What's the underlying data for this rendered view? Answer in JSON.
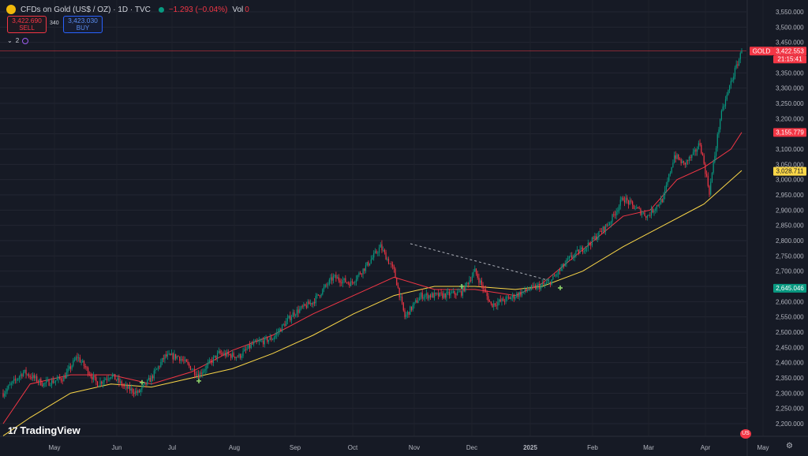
{
  "legend": {
    "symbol_title": "CFDs on Gold (US$ / OZ) · 1D · TVC",
    "change": "−1.293 (−0.04%)",
    "volume_label": "Vol",
    "volume_value": "0",
    "market_status_color": "#089981"
  },
  "trade": {
    "sell_price": "3,422.690",
    "sell_label": "SELL",
    "spread": "340",
    "buy_price": "3,423.030",
    "buy_label": "BUY"
  },
  "indicators": {
    "count": "2"
  },
  "branding": {
    "logo_text": "TradingView"
  },
  "price_axis_labels": {
    "gold_label": "GOLD",
    "gold_price": "3,422.553",
    "countdown": "21:15:41",
    "ma_fast": "3,155.779",
    "ma_slow": "3,028.711",
    "ma_touch": "2,645.046"
  },
  "chart_data": {
    "type": "candlestick",
    "symbol": "GOLD",
    "timeframe": "1D",
    "ylim": [
      2180,
      3560
    ],
    "y_ticks": [
      2200,
      2250,
      2300,
      2350,
      2400,
      2450,
      2500,
      2550,
      2600,
      2650,
      2700,
      2750,
      2800,
      2850,
      2900,
      2950,
      3000,
      3050,
      3100,
      3150,
      3200,
      3250,
      3300,
      3350,
      3400,
      3450,
      3500,
      3550
    ],
    "x_labels": [
      "May",
      "Jun",
      "Jul",
      "Aug",
      "Sep",
      "Oct",
      "Nov",
      "Dec",
      "2025",
      "Feb",
      "Mar",
      "Apr",
      "May"
    ],
    "last_price": 3422.553,
    "series": [
      {
        "name": "MA fast",
        "color": "#f23645",
        "last": 3155.779
      },
      {
        "name": "MA slow",
        "color": "#fbd748",
        "last": 3028.711
      }
    ],
    "trend_line": {
      "from": [
        "Oct 30",
        2790
      ],
      "to": [
        "Jan 14",
        2670
      ]
    },
    "anchors": [
      [
        0,
        2300
      ],
      [
        15,
        2370
      ],
      [
        30,
        2330
      ],
      [
        45,
        2350
      ],
      [
        55,
        2420
      ],
      [
        70,
        2330
      ],
      [
        80,
        2360
      ],
      [
        90,
        2320
      ],
      [
        100,
        2300
      ],
      [
        110,
        2350
      ],
      [
        120,
        2420
      ],
      [
        130,
        2420
      ],
      [
        145,
        2360
      ],
      [
        160,
        2430
      ],
      [
        175,
        2420
      ],
      [
        185,
        2460
      ],
      [
        200,
        2480
      ],
      [
        215,
        2560
      ],
      [
        230,
        2600
      ],
      [
        245,
        2680
      ],
      [
        258,
        2660
      ],
      [
        270,
        2720
      ],
      [
        280,
        2780
      ],
      [
        290,
        2700
      ],
      [
        298,
        2550
      ],
      [
        310,
        2620
      ],
      [
        325,
        2620
      ],
      [
        340,
        2630
      ],
      [
        350,
        2700
      ],
      [
        362,
        2590
      ],
      [
        375,
        2610
      ],
      [
        390,
        2640
      ],
      [
        405,
        2660
      ],
      [
        420,
        2740
      ],
      [
        435,
        2790
      ],
      [
        450,
        2860
      ],
      [
        460,
        2940
      ],
      [
        468,
        2910
      ],
      [
        478,
        2880
      ],
      [
        490,
        2940
      ],
      [
        498,
        3080
      ],
      [
        505,
        3050
      ],
      [
        512,
        3080
      ],
      [
        517,
        3120
      ],
      [
        524,
        2960
      ],
      [
        532,
        3200
      ],
      [
        540,
        3320
      ],
      [
        548,
        3420
      ]
    ],
    "ma_fast_path": [
      [
        0,
        2200
      ],
      [
        20,
        2330
      ],
      [
        50,
        2360
      ],
      [
        80,
        2360
      ],
      [
        110,
        2330
      ],
      [
        140,
        2370
      ],
      [
        170,
        2440
      ],
      [
        200,
        2490
      ],
      [
        230,
        2560
      ],
      [
        260,
        2620
      ],
      [
        290,
        2680
      ],
      [
        320,
        2640
      ],
      [
        350,
        2640
      ],
      [
        380,
        2620
      ],
      [
        400,
        2660
      ],
      [
        430,
        2770
      ],
      [
        460,
        2880
      ],
      [
        480,
        2900
      ],
      [
        500,
        3000
      ],
      [
        520,
        3040
      ],
      [
        540,
        3100
      ],
      [
        548,
        3155
      ]
    ],
    "ma_slow_path": [
      [
        0,
        2160
      ],
      [
        20,
        2220
      ],
      [
        50,
        2300
      ],
      [
        80,
        2330
      ],
      [
        110,
        2320
      ],
      [
        140,
        2350
      ],
      [
        170,
        2380
      ],
      [
        200,
        2430
      ],
      [
        230,
        2490
      ],
      [
        260,
        2560
      ],
      [
        290,
        2620
      ],
      [
        320,
        2650
      ],
      [
        350,
        2650
      ],
      [
        380,
        2640
      ],
      [
        400,
        2650
      ],
      [
        430,
        2700
      ],
      [
        460,
        2780
      ],
      [
        490,
        2850
      ],
      [
        520,
        2920
      ],
      [
        548,
        3030
      ]
    ]
  }
}
